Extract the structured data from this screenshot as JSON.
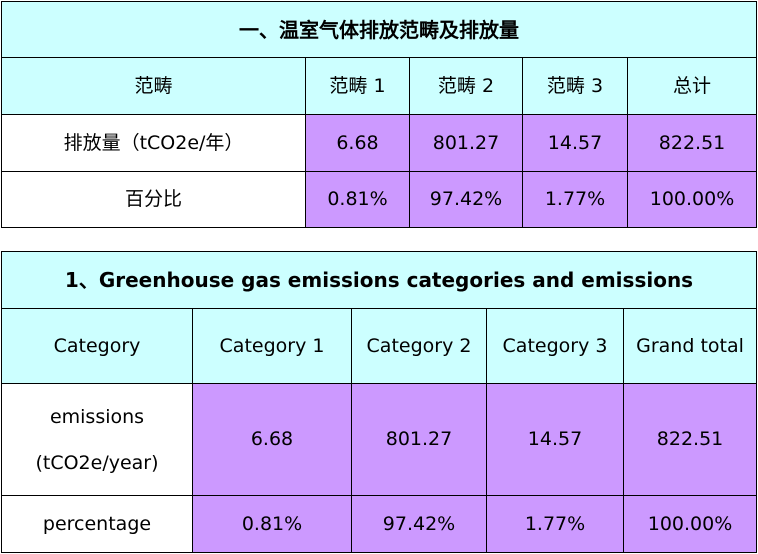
{
  "table_cn": {
    "title": "一、温室气体排放范畴及排放量",
    "headers": [
      "范畴",
      "范畴 1",
      "范畴 2",
      "范畴 3",
      "总计"
    ],
    "rows": [
      {
        "label": "排放量（tCO2e/年）",
        "values": [
          "6.68",
          "801.27",
          "14.57",
          "822.51"
        ]
      },
      {
        "label": "百分比",
        "values": [
          "0.81%",
          "97.42%",
          "1.77%",
          "100.00%"
        ]
      }
    ]
  },
  "table_en": {
    "title": "1、Greenhouse gas emissions categories and emissions",
    "headers": [
      "Category",
      "Category 1",
      "Category 2",
      "Category 3",
      "Grand total"
    ],
    "rows": [
      {
        "label_line1": "emissions",
        "label_line2": "(tCO2e/year)",
        "values": [
          "6.68",
          "801.27",
          "14.57",
          "822.51"
        ]
      },
      {
        "label": "percentage",
        "values": [
          "0.81%",
          "97.42%",
          "1.77%",
          "100.00%"
        ]
      }
    ]
  },
  "colors": {
    "header_bg": "#ccffff",
    "value_bg": "#cc99ff",
    "label_bg": "#ffffff",
    "border": "#000000"
  }
}
